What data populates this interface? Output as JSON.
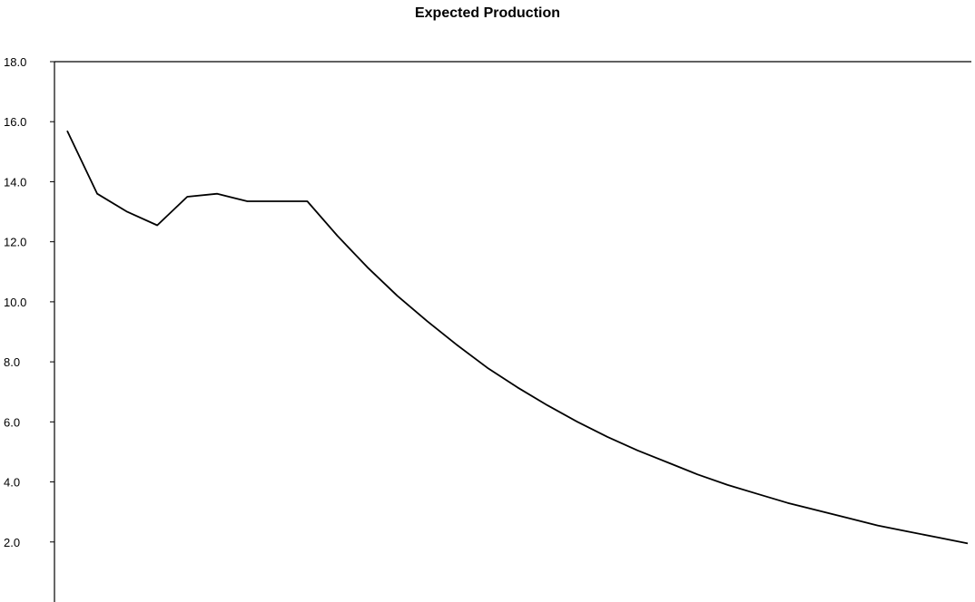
{
  "chart_data": {
    "type": "line",
    "title": "Expected Production",
    "xlabel": "",
    "ylabel": "",
    "ylim": [
      0,
      18
    ],
    "yticks": [
      2.0,
      4.0,
      6.0,
      8.0,
      10.0,
      12.0,
      14.0,
      16.0,
      18.0
    ],
    "ytick_labels": [
      "2.0",
      "4.0",
      "6.0",
      "8.0",
      "10.0",
      "12.0",
      "14.0",
      "16.0",
      "18.0"
    ],
    "grid": false,
    "series": [
      {
        "values": [
          15.7,
          13.6,
          13.0,
          12.55,
          13.5,
          13.6,
          13.35,
          13.35,
          13.35,
          12.2,
          11.15,
          10.2,
          9.35,
          8.55,
          7.8,
          7.15,
          6.55,
          6.0,
          5.5,
          5.05,
          4.65,
          4.25,
          3.9,
          3.6,
          3.3,
          3.05,
          2.8,
          2.55,
          2.35,
          2.15,
          1.95
        ]
      }
    ]
  }
}
